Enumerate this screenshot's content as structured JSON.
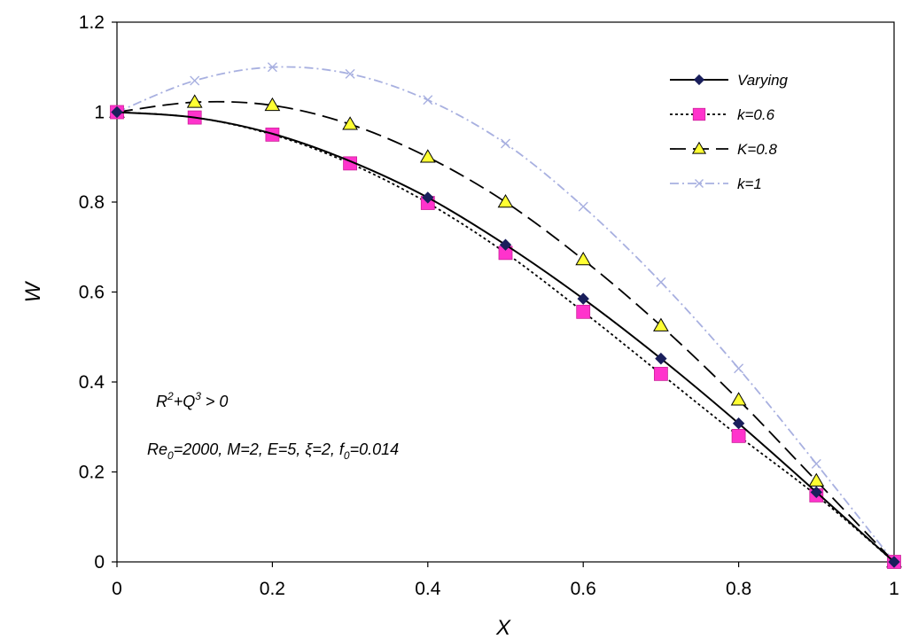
{
  "chart_data": {
    "type": "line",
    "xlabel": "X",
    "ylabel": "W",
    "xlim": [
      0,
      1
    ],
    "ylim": [
      0,
      1.2
    ],
    "xticks": [
      "0",
      "0.2",
      "0.4",
      "0.6",
      "0.8",
      "1"
    ],
    "yticks": [
      "0",
      "0.2",
      "0.4",
      "0.6",
      "0.8",
      "1",
      "1.2"
    ],
    "grid": false,
    "legend_position": "top-right",
    "annotations": [
      {
        "base": "R",
        "sup1": "2",
        "mid": "+Q",
        "sup2": "3",
        "rest": " > 0"
      },
      {
        "p1": "Re",
        "sub1": "0",
        "p2": "=2000, M=2, E=5, ξ=2, f",
        "sub2": "0",
        "p3": "=0.014"
      }
    ],
    "series": [
      {
        "name": "Varying",
        "color": "#000000",
        "line": "solid",
        "marker": "diamond",
        "marker_color": "#1a1f5c",
        "points": [
          [
            0,
            1.0
          ],
          [
            0.4,
            0.81
          ],
          [
            0.5,
            0.705
          ],
          [
            0.6,
            0.585
          ],
          [
            0.7,
            0.452
          ],
          [
            0.8,
            0.308
          ],
          [
            0.9,
            0.155
          ],
          [
            1.0,
            0.0
          ]
        ],
        "curve": [
          [
            0,
            1.0
          ],
          [
            0.1,
            0.988
          ],
          [
            0.2,
            0.952
          ],
          [
            0.3,
            0.891
          ],
          [
            0.4,
            0.81
          ],
          [
            0.5,
            0.705
          ],
          [
            0.6,
            0.585
          ],
          [
            0.7,
            0.452
          ],
          [
            0.8,
            0.308
          ],
          [
            0.9,
            0.155
          ],
          [
            1.0,
            0.0
          ]
        ]
      },
      {
        "name": "k=0.6",
        "color": "#000000",
        "line": "dotted",
        "marker": "square",
        "marker_color": "#ff33cc",
        "points": [
          [
            0,
            1.0
          ],
          [
            0.1,
            0.988
          ],
          [
            0.2,
            0.95
          ],
          [
            0.3,
            0.886
          ],
          [
            0.4,
            0.798
          ],
          [
            0.5,
            0.687
          ],
          [
            0.6,
            0.556
          ],
          [
            0.7,
            0.418
          ],
          [
            0.8,
            0.28
          ],
          [
            0.9,
            0.148
          ],
          [
            1.0,
            0.0
          ]
        ],
        "curve": [
          [
            0,
            1.0
          ],
          [
            0.1,
            0.988
          ],
          [
            0.2,
            0.95
          ],
          [
            0.3,
            0.886
          ],
          [
            0.4,
            0.798
          ],
          [
            0.5,
            0.687
          ],
          [
            0.6,
            0.556
          ],
          [
            0.7,
            0.418
          ],
          [
            0.8,
            0.28
          ],
          [
            0.9,
            0.148
          ],
          [
            1.0,
            0.0
          ]
        ]
      },
      {
        "name": "K=0.8",
        "color": "#000000",
        "line": "dashed",
        "marker": "triangle",
        "marker_color": "#ffff33",
        "points": [
          [
            0,
            1.0
          ],
          [
            0.1,
            1.022
          ],
          [
            0.2,
            1.015
          ],
          [
            0.3,
            0.973
          ],
          [
            0.4,
            0.9
          ],
          [
            0.5,
            0.8
          ],
          [
            0.6,
            0.672
          ],
          [
            0.7,
            0.525
          ],
          [
            0.8,
            0.36
          ],
          [
            0.9,
            0.18
          ],
          [
            1.0,
            0.0
          ]
        ],
        "curve": [
          [
            0,
            1.0
          ],
          [
            0.1,
            1.022
          ],
          [
            0.2,
            1.015
          ],
          [
            0.3,
            0.973
          ],
          [
            0.4,
            0.9
          ],
          [
            0.5,
            0.8
          ],
          [
            0.6,
            0.672
          ],
          [
            0.7,
            0.525
          ],
          [
            0.8,
            0.36
          ],
          [
            0.9,
            0.18
          ],
          [
            1.0,
            0.0
          ]
        ]
      },
      {
        "name": "k=1",
        "color": "#a8b0e0",
        "line": "dashdot",
        "marker": "x",
        "marker_color": "#a8b0e0",
        "points": [
          [
            0,
            1.0
          ],
          [
            0.1,
            1.07
          ],
          [
            0.2,
            1.1
          ],
          [
            0.3,
            1.085
          ],
          [
            0.4,
            1.027
          ],
          [
            0.5,
            0.93
          ],
          [
            0.6,
            0.79
          ],
          [
            0.7,
            0.622
          ],
          [
            0.8,
            0.43
          ],
          [
            0.9,
            0.218
          ],
          [
            1.0,
            0.0
          ]
        ],
        "curve": [
          [
            0,
            1.0
          ],
          [
            0.1,
            1.07
          ],
          [
            0.2,
            1.1
          ],
          [
            0.3,
            1.085
          ],
          [
            0.4,
            1.027
          ],
          [
            0.5,
            0.93
          ],
          [
            0.6,
            0.79
          ],
          [
            0.7,
            0.622
          ],
          [
            0.8,
            0.43
          ],
          [
            0.9,
            0.218
          ],
          [
            1.0,
            0.0
          ]
        ]
      }
    ]
  }
}
